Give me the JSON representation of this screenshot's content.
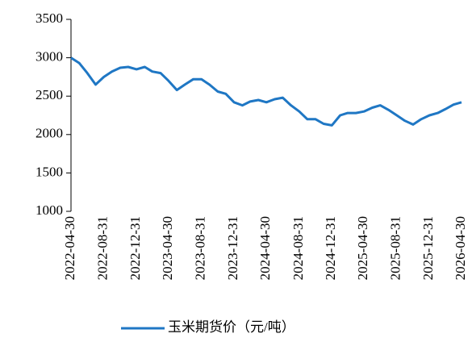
{
  "chart_data": {
    "type": "line",
    "x": [
      "2022-04-30",
      "2022-05-31",
      "2022-06-30",
      "2022-07-31",
      "2022-08-31",
      "2022-09-30",
      "2022-10-31",
      "2022-11-30",
      "2022-12-31",
      "2023-01-31",
      "2023-02-28",
      "2023-03-31",
      "2023-04-30",
      "2023-05-31",
      "2023-06-30",
      "2023-07-31",
      "2023-08-31",
      "2023-09-30",
      "2023-10-31",
      "2023-11-30",
      "2023-12-31",
      "2024-01-31",
      "2024-02-29",
      "2024-03-31",
      "2024-04-30",
      "2024-05-31",
      "2024-06-30",
      "2024-07-31",
      "2024-08-31",
      "2024-09-30",
      "2024-10-31",
      "2024-11-30",
      "2024-12-31",
      "2025-01-31",
      "2025-02-28",
      "2025-03-31",
      "2025-04-30",
      "2025-05-31",
      "2025-06-30",
      "2025-07-31",
      "2025-08-31",
      "2025-09-30",
      "2025-10-31",
      "2025-11-30",
      "2025-12-31",
      "2026-01-31",
      "2026-02-28",
      "2026-03-31",
      "2026-04-30"
    ],
    "series": [
      {
        "name": "玉米期货价（元/吨）",
        "color": "#1f77c4",
        "values": [
          3000,
          2930,
          2800,
          2650,
          2750,
          2820,
          2870,
          2880,
          2850,
          2880,
          2820,
          2800,
          2700,
          2580,
          2650,
          2720,
          2720,
          2650,
          2560,
          2530,
          2420,
          2380,
          2430,
          2450,
          2420,
          2460,
          2480,
          2380,
          2300,
          2200,
          2200,
          2140,
          2120,
          2250,
          2280,
          2280,
          2300,
          2350,
          2380,
          2320,
          2250,
          2180,
          2130,
          2200,
          2250,
          2280,
          2330,
          2390,
          2420
        ]
      }
    ],
    "xticks": [
      "2022-04-30",
      "2022-08-31",
      "2022-12-31",
      "2023-04-30",
      "2023-08-31",
      "2023-12-31",
      "2024-04-30",
      "2024-08-31",
      "2024-12-31",
      "2025-04-30",
      "2025-08-31",
      "2025-12-31",
      "2026-04-30"
    ],
    "ylim": [
      1000,
      3500
    ],
    "yticks": [
      1000,
      1500,
      2000,
      2500,
      3000,
      3500
    ],
    "legend": "bottom"
  }
}
